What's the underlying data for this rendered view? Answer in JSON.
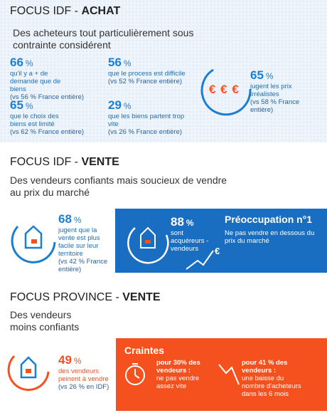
{
  "sections": [
    {
      "title_light": "FOCUS IDF - ",
      "title_bold": "ACHAT",
      "subtitle": "Des acheteurs tout particulièrement sous contrainte considérent",
      "stats": [
        {
          "value": 66,
          "unit": "%",
          "text": "qu'il y a + de demande que de biens",
          "comparison": "(vs 56 % France entière)"
        },
        {
          "value": 56,
          "unit": "%",
          "text": "que le process est difficile",
          "comparison": "(vs 52 % France entière)"
        },
        {
          "value": 65,
          "unit": "%",
          "text": "que le choix des biens est limité",
          "comparison": "(vs 62 % France entière)"
        },
        {
          "value": 29,
          "unit": "%",
          "text": "que les biens partent trop vite",
          "comparison": "(vs 26 % France entière)"
        }
      ],
      "highlight": {
        "icon": "€ € €",
        "value": 65,
        "unit": "%",
        "text": "jugent les prix irréalistes",
        "comparison": "(vs 58 % France entière)"
      }
    },
    {
      "title_light": "FOCUS IDF - ",
      "title_bold": "VENTE",
      "subtitle": "Des vendeurs confiants mais soucieux de vendre au prix du marché",
      "stat": {
        "value": 68,
        "unit": "%",
        "text": "jugent que la vente est plus facile sur leur territoire",
        "comparison": "(vs 42 % France entière)"
      },
      "box": {
        "value": 88,
        "unit": "%",
        "text": "sont acquéreurs -vendeurs",
        "icon": "€",
        "heading": "Préoccupation n°1",
        "body": "Ne pas vendre en dessous du prix du marché"
      }
    },
    {
      "title_light": "FOCUS PROVINCE - ",
      "title_bold": "VENTE",
      "subtitle": "Des vendeurs moins confiants",
      "stat": {
        "value": 49,
        "unit": "%",
        "text": "des vendeurs peinent à vendre",
        "comparison": "(vs 26 % en IDF)"
      },
      "box": {
        "heading": "Craintes",
        "items": [
          {
            "lead": "pour 30% des vendeurs :",
            "text": "ne pas vendre assez vite"
          },
          {
            "lead": "pour 41 % des vendeurs :",
            "text": "une baisse du nombre d'acheteurs dans les 6 mois"
          }
        ]
      }
    }
  ]
}
